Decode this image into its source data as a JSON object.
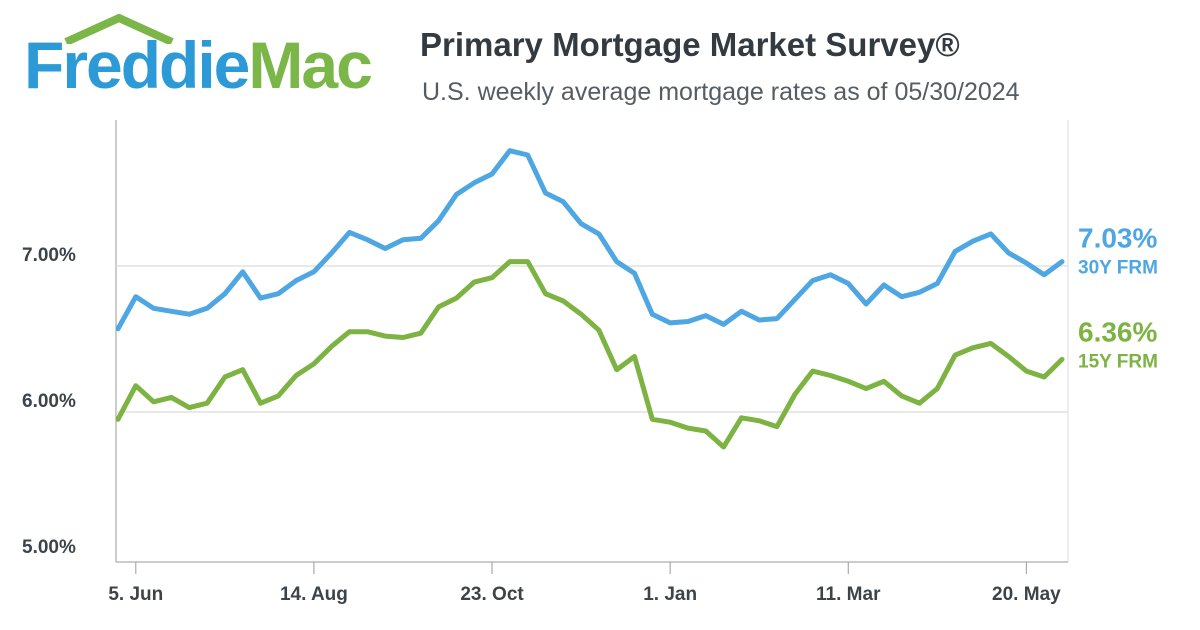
{
  "header": {
    "logo_part1": "Freddie",
    "logo_part2": "Mac",
    "title": "Primary Mortgage Market Survey®",
    "subtitle": "U.S. weekly average mortgage rates as of 05/30/2024"
  },
  "colors": {
    "logo_blue": "#2b9ad6",
    "logo_green": "#7ab648",
    "series_30y": "#4ea6e3",
    "series_15y": "#7cb342",
    "grid": "#dcdcdc",
    "axis": "#9a9a9a"
  },
  "chart_data": {
    "type": "line",
    "title": "Primary Mortgage Market Survey®",
    "subtitle": "U.S. weekly average mortgage rates as of 05/30/2024",
    "ylim": [
      5.0,
      8.0
    ],
    "yticks": [
      {
        "value": 5.0,
        "label": "5.00%"
      },
      {
        "value": 6.0,
        "label": "6.00%"
      },
      {
        "value": 7.0,
        "label": "7.00%"
      }
    ],
    "xticks": [
      {
        "index": 1,
        "label": "5. Jun"
      },
      {
        "index": 11,
        "label": "14. Aug"
      },
      {
        "index": 21,
        "label": "23. Oct"
      },
      {
        "index": 31,
        "label": "1. Jan"
      },
      {
        "index": 41,
        "label": "11. Mar"
      },
      {
        "index": 51,
        "label": "20. May"
      }
    ],
    "grid": "horizontal",
    "series": [
      {
        "name": "30Y FRM",
        "end_value_label": "7.03%",
        "values": [
          6.57,
          6.79,
          6.71,
          6.69,
          6.67,
          6.71,
          6.81,
          6.96,
          6.78,
          6.81,
          6.9,
          6.96,
          7.09,
          7.23,
          7.18,
          7.12,
          7.18,
          7.19,
          7.31,
          7.49,
          7.57,
          7.63,
          7.79,
          7.76,
          7.5,
          7.44,
          7.29,
          7.22,
          7.03,
          6.95,
          6.67,
          6.61,
          6.62,
          6.66,
          6.6,
          6.69,
          6.63,
          6.64,
          6.77,
          6.9,
          6.94,
          6.88,
          6.74,
          6.87,
          6.79,
          6.82,
          6.88,
          7.1,
          7.17,
          7.22,
          7.09,
          7.02,
          6.94,
          7.03
        ]
      },
      {
        "name": "15Y FRM",
        "end_value_label": "6.36%",
        "values": [
          5.95,
          6.18,
          6.07,
          6.1,
          6.03,
          6.06,
          6.24,
          6.29,
          6.06,
          6.11,
          6.25,
          6.33,
          6.45,
          6.55,
          6.55,
          6.52,
          6.51,
          6.54,
          6.72,
          6.78,
          6.89,
          6.92,
          7.03,
          7.03,
          6.81,
          6.76,
          6.67,
          6.56,
          6.29,
          6.38,
          5.95,
          5.93,
          5.89,
          5.87,
          5.76,
          5.96,
          5.94,
          5.9,
          6.12,
          6.28,
          6.25,
          6.21,
          6.16,
          6.21,
          6.11,
          6.06,
          6.16,
          6.39,
          6.44,
          6.47,
          6.38,
          6.28,
          6.24,
          6.36
        ]
      }
    ]
  }
}
